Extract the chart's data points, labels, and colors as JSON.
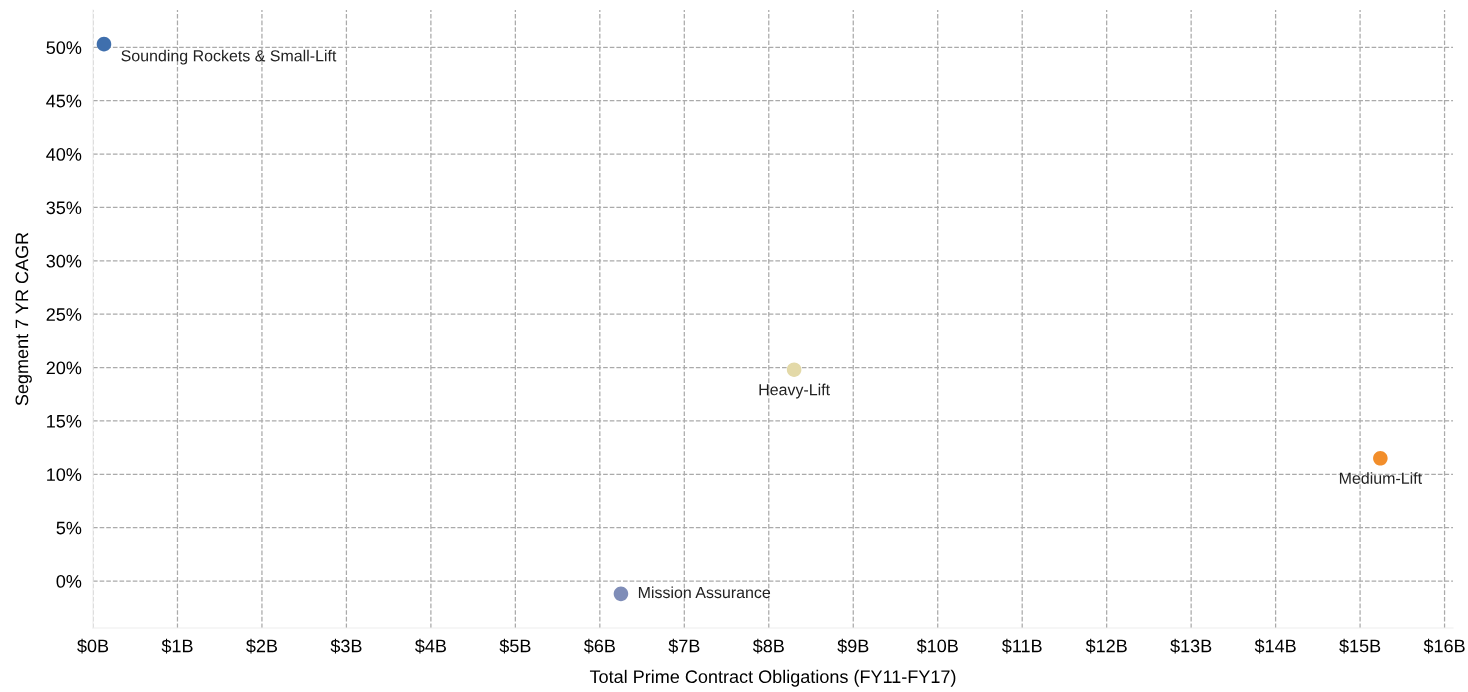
{
  "chart_data": {
    "type": "scatter",
    "xlabel": "Total Prime Contract Obligations (FY11-FY17)",
    "ylabel": "Segment 7 YR CAGR",
    "series": [
      {
        "name": "Sounding Rockets & Small-Lift",
        "color": "#3f6fad",
        "x": [
          0.13
        ],
        "values": [
          50.3
        ]
      },
      {
        "name": "Mission Assurance",
        "color": "#7f8db8",
        "x": [
          6.25
        ],
        "values": [
          -1.2
        ]
      },
      {
        "name": "Heavy-Lift",
        "color": "#e3d9a8",
        "x": [
          8.3
        ],
        "values": [
          19.8
        ]
      },
      {
        "name": "Medium-Lift",
        "color": "#f28e2b",
        "x": [
          15.24
        ],
        "values": [
          11.5
        ]
      }
    ],
    "xlim": [
      0,
      16.1
    ],
    "xticks": [
      {
        "value": 0,
        "label": "$0B"
      },
      {
        "value": 1,
        "label": "$1B"
      },
      {
        "value": 2,
        "label": "$2B"
      },
      {
        "value": 3,
        "label": "$3B"
      },
      {
        "value": 4,
        "label": "$4B"
      },
      {
        "value": 5,
        "label": "$5B"
      },
      {
        "value": 6,
        "label": "$6B"
      },
      {
        "value": 7,
        "label": "$7B"
      },
      {
        "value": 8,
        "label": "$8B"
      },
      {
        "value": 9,
        "label": "$9B"
      },
      {
        "value": 10,
        "label": "$10B"
      },
      {
        "value": 11,
        "label": "$11B"
      },
      {
        "value": 12,
        "label": "$12B"
      },
      {
        "value": 13,
        "label": "$13B"
      },
      {
        "value": 14,
        "label": "$14B"
      },
      {
        "value": 15,
        "label": "$15B"
      },
      {
        "value": 16,
        "label": "$16B"
      }
    ],
    "ylim": [
      -4.4,
      53.5
    ],
    "yticks": [
      {
        "value": 0,
        "label": "0%"
      },
      {
        "value": 5,
        "label": "5%"
      },
      {
        "value": 10,
        "label": "10%"
      },
      {
        "value": 15,
        "label": "15%"
      },
      {
        "value": 20,
        "label": "20%"
      },
      {
        "value": 25,
        "label": "25%"
      },
      {
        "value": 30,
        "label": "30%"
      },
      {
        "value": 35,
        "label": "35%"
      },
      {
        "value": 40,
        "label": "40%"
      },
      {
        "value": 45,
        "label": "45%"
      },
      {
        "value": 50,
        "label": "50%"
      }
    ],
    "grid": true,
    "legend": false,
    "marker": "circle"
  }
}
